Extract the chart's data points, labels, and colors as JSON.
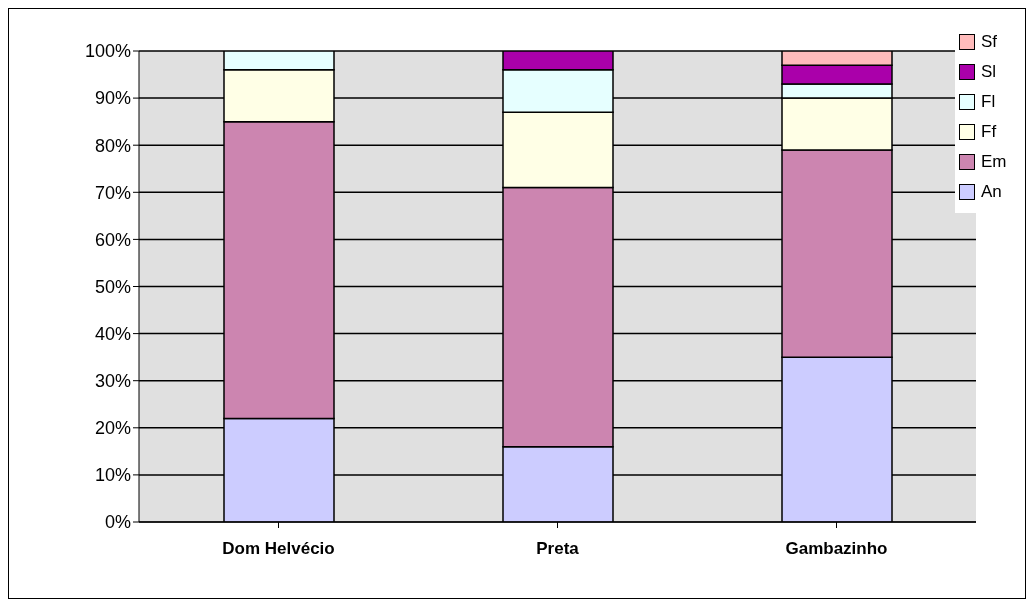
{
  "chart_data": {
    "type": "bar",
    "stacked": true,
    "categories": [
      "Dom Helvécio",
      "Preta",
      "Gambazinho"
    ],
    "series": [
      {
        "name": "An",
        "color": "#ccccff",
        "values": [
          22,
          16,
          35
        ]
      },
      {
        "name": "Em",
        "color": "#cc85b0",
        "values": [
          63,
          55,
          44
        ]
      },
      {
        "name": "Ff",
        "color": "#ffffe6",
        "values": [
          11,
          16,
          11
        ]
      },
      {
        "name": "Fl",
        "color": "#e6ffff",
        "values": [
          4,
          9,
          3
        ]
      },
      {
        "name": "Sl",
        "color": "#aa00aa",
        "values": [
          0,
          4,
          4
        ]
      },
      {
        "name": "Sf",
        "color": "#ffbbbb",
        "values": [
          0,
          0,
          3
        ]
      }
    ],
    "ylim": [
      0,
      100
    ],
    "yticks": [
      {
        "value": 0,
        "label": "0%"
      },
      {
        "value": 10,
        "label": "10%"
      },
      {
        "value": 20,
        "label": "20%"
      },
      {
        "value": 30,
        "label": "30%"
      },
      {
        "value": 40,
        "label": "40%"
      },
      {
        "value": 50,
        "label": "50%"
      },
      {
        "value": 60,
        "label": "60%"
      },
      {
        "value": 70,
        "label": "70%"
      },
      {
        "value": 80,
        "label": "80%"
      },
      {
        "value": 90,
        "label": "90%"
      },
      {
        "value": 100,
        "label": "100%"
      }
    ],
    "grid": "y",
    "legend": "top right"
  }
}
